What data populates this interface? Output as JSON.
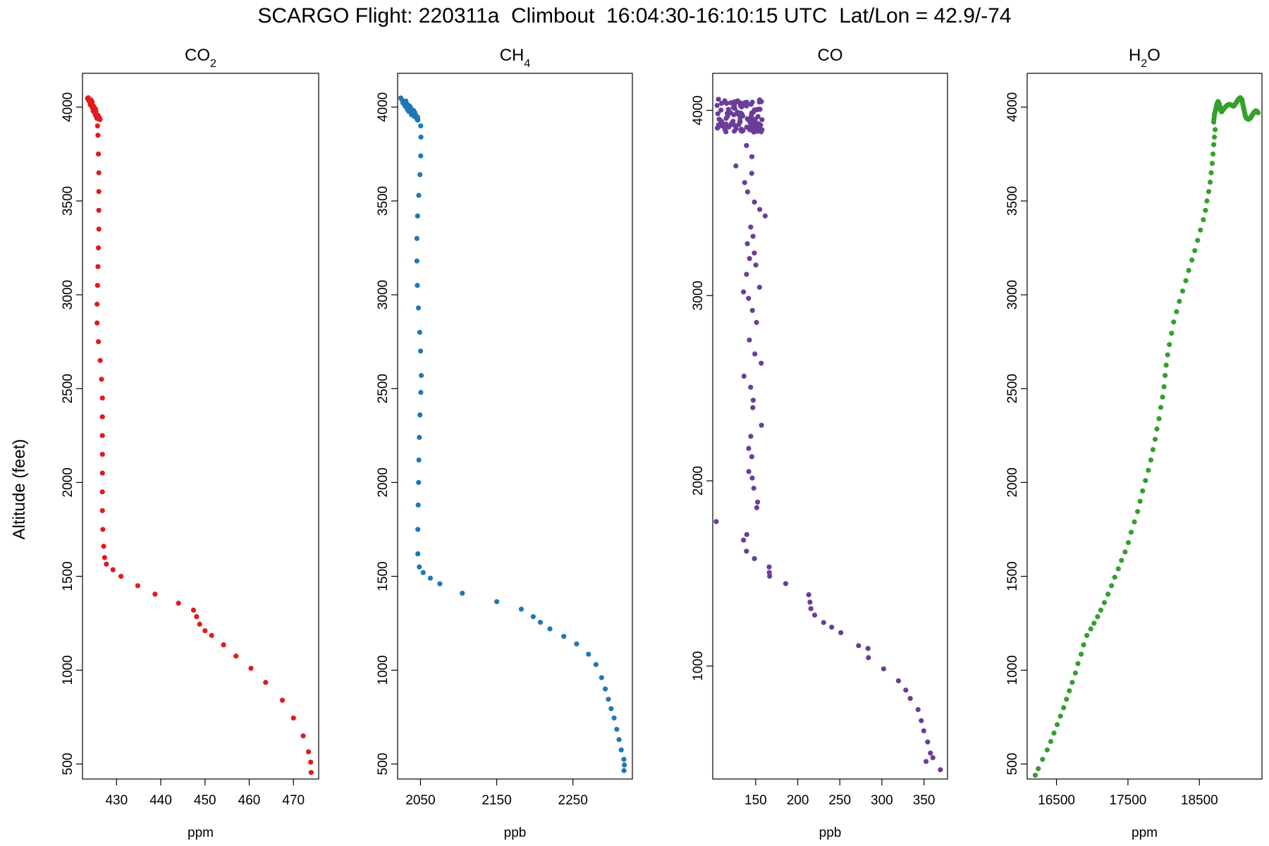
{
  "figure": {
    "title": "SCARGO Flight: 220311a  Climbout  16:04:30-16:10:15 UTC  Lat/Lon = 42.9/-74",
    "ylabel": "Altitude (feet)"
  },
  "chart_data": [
    {
      "type": "scatter",
      "title_main": "CO",
      "title_sub": "2",
      "color": "#e31a1c",
      "xlabel": "ppm",
      "ylabel": "Altitude (feet)",
      "xlim": [
        422.3,
        475.7
      ],
      "ylim": [
        420,
        4180
      ],
      "xticks": [
        430,
        440,
        450,
        460,
        470
      ],
      "yticks": [
        500,
        1000,
        1500,
        2000,
        2500,
        3000,
        3500,
        4000
      ],
      "profile": [
        [
          474.0,
          455
        ],
        [
          473.9,
          510
        ],
        [
          473.4,
          565
        ],
        [
          472.2,
          650
        ],
        [
          470.0,
          745
        ],
        [
          467.5,
          840
        ],
        [
          463.7,
          935
        ],
        [
          460.4,
          1010
        ],
        [
          457.0,
          1075
        ],
        [
          454.2,
          1135
        ],
        [
          451.5,
          1185
        ],
        [
          450.0,
          1210
        ],
        [
          448.8,
          1245
        ],
        [
          448.1,
          1285
        ],
        [
          447.4,
          1320
        ],
        [
          444.0,
          1357
        ],
        [
          438.7,
          1405
        ],
        [
          434.8,
          1450
        ],
        [
          431.0,
          1500
        ],
        [
          429.2,
          1535
        ],
        [
          427.7,
          1565
        ],
        [
          427.3,
          1600
        ],
        [
          427.1,
          1660
        ],
        [
          426.9,
          1750
        ],
        [
          426.8,
          1850
        ],
        [
          426.8,
          1950
        ],
        [
          426.8,
          2050
        ],
        [
          426.8,
          2150
        ],
        [
          426.8,
          2250
        ],
        [
          426.8,
          2350
        ],
        [
          426.8,
          2450
        ],
        [
          426.6,
          2550
        ],
        [
          426.3,
          2650
        ],
        [
          425.9,
          2750
        ],
        [
          425.6,
          2850
        ],
        [
          425.6,
          2950
        ],
        [
          425.7,
          3050
        ],
        [
          425.8,
          3150
        ],
        [
          425.9,
          3250
        ],
        [
          426.0,
          3350
        ],
        [
          426.0,
          3450
        ],
        [
          426.0,
          3550
        ],
        [
          426.0,
          3650
        ],
        [
          425.9,
          3750
        ],
        [
          425.8,
          3850
        ],
        [
          425.7,
          3900
        ]
      ],
      "cluster": {
        "x": [
          423.7,
          426.0
        ],
        "y": [
          3930,
          4050
        ],
        "count": 45
      }
    },
    {
      "type": "scatter",
      "title_main": "CH",
      "title_sub": "4",
      "color": "#1f78b4",
      "xlabel": "ppb",
      "ylabel": "Altitude (feet)",
      "xlim": [
        2020,
        2328
      ],
      "ylim": [
        420,
        4180
      ],
      "xticks": [
        2050,
        2150,
        2250
      ],
      "yticks": [
        500,
        1000,
        1500,
        2000,
        2500,
        3000,
        3500,
        4000
      ],
      "profile": [
        [
          2317.0,
          465
        ],
        [
          2317.5,
          495
        ],
        [
          2316.8,
          525
        ],
        [
          2313.4,
          575
        ],
        [
          2310.5,
          630
        ],
        [
          2307.5,
          685
        ],
        [
          2304.0,
          745
        ],
        [
          2300.1,
          795
        ],
        [
          2296.5,
          845
        ],
        [
          2292.5,
          900
        ],
        [
          2287.6,
          960
        ],
        [
          2280.2,
          1030
        ],
        [
          2270.4,
          1085
        ],
        [
          2254.8,
          1140
        ],
        [
          2238.0,
          1180
        ],
        [
          2219.8,
          1220
        ],
        [
          2207.3,
          1255
        ],
        [
          2197.9,
          1285
        ],
        [
          2182.3,
          1325
        ],
        [
          2150.1,
          1365
        ],
        [
          2104.9,
          1410
        ],
        [
          2075.4,
          1460
        ],
        [
          2063.0,
          1490
        ],
        [
          2053.5,
          1520
        ],
        [
          2048.5,
          1550
        ],
        [
          2046.5,
          1620
        ],
        [
          2046.5,
          1750
        ],
        [
          2047.0,
          1880
        ],
        [
          2047.5,
          2000
        ],
        [
          2047.9,
          2120
        ],
        [
          2048.5,
          2240
        ],
        [
          2049.3,
          2360
        ],
        [
          2050.4,
          2480
        ],
        [
          2051.1,
          2570
        ],
        [
          2050.1,
          2700
        ],
        [
          2049.0,
          2800
        ],
        [
          2047.3,
          2930
        ],
        [
          2045.9,
          3050
        ],
        [
          2045.3,
          3180
        ],
        [
          2045.3,
          3300
        ],
        [
          2046.2,
          3420
        ],
        [
          2047.7,
          3530
        ],
        [
          2049.3,
          3640
        ],
        [
          2050.3,
          3740
        ],
        [
          2050.6,
          3840
        ],
        [
          2050.3,
          3900
        ]
      ],
      "cluster": {
        "x": [
          2024.5,
          2046.5
        ],
        "y": [
          3930,
          4055
        ],
        "count": 45
      }
    },
    {
      "type": "scatter",
      "title_main": "CO",
      "title_sub": "",
      "color": "#6a3d9a",
      "xlabel": "ppb",
      "ylabel": "Altitude (feet)",
      "xlim": [
        99,
        378
      ],
      "ylim": [
        390,
        4200
      ],
      "xticks": [
        150,
        200,
        250,
        300,
        350
      ],
      "yticks": [
        1000,
        2000,
        3000,
        4000
      ],
      "profile": [
        [
          369.5,
          440
        ],
        [
          352.5,
          485
        ],
        [
          360.6,
          505
        ],
        [
          357.7,
          530
        ],
        [
          354.4,
          590
        ],
        [
          349.8,
          650
        ],
        [
          346.8,
          705
        ],
        [
          343.0,
          765
        ],
        [
          333.7,
          825
        ],
        [
          328.4,
          870
        ],
        [
          319.7,
          920
        ],
        [
          302.1,
          985
        ],
        [
          284.0,
          1045
        ],
        [
          283.5,
          1095
        ],
        [
          272.3,
          1110
        ],
        [
          251.2,
          1180
        ],
        [
          240.3,
          1210
        ],
        [
          230.8,
          1235
        ],
        [
          220.1,
          1275
        ],
        [
          215.6,
          1310
        ],
        [
          214.5,
          1345
        ],
        [
          213.1,
          1385
        ],
        [
          185.7,
          1445
        ],
        [
          166.6,
          1485
        ],
        [
          166.2,
          1505
        ],
        [
          166.0,
          1535
        ],
        [
          148.5,
          1580
        ],
        [
          139.1,
          1620
        ],
        [
          135.6,
          1680
        ],
        [
          139.4,
          1710
        ],
        [
          103.1,
          1780
        ],
        [
          151.3,
          1855
        ],
        [
          152.3,
          1885
        ],
        [
          147.8,
          1960
        ],
        [
          145.9,
          2015
        ],
        [
          141.8,
          2050
        ],
        [
          145.4,
          2130
        ],
        [
          141.7,
          2175
        ],
        [
          144.2,
          2240
        ],
        [
          156.9,
          2300
        ],
        [
          146.6,
          2395
        ],
        [
          147.1,
          2435
        ],
        [
          144.0,
          2505
        ],
        [
          136.1,
          2565
        ],
        [
          156.6,
          2635
        ],
        [
          149.0,
          2685
        ],
        [
          142.5,
          2760
        ],
        [
          151.0,
          2855
        ],
        [
          146.1,
          2920
        ],
        [
          141.5,
          2985
        ],
        [
          135.5,
          3020
        ],
        [
          154.6,
          3045
        ],
        [
          139.1,
          3115
        ],
        [
          150.2,
          3165
        ],
        [
          142.7,
          3200
        ],
        [
          148.4,
          3230
        ],
        [
          140.1,
          3280
        ],
        [
          146.9,
          3320
        ],
        [
          144.1,
          3370
        ],
        [
          161.3,
          3430
        ],
        [
          154.8,
          3465
        ],
        [
          148.5,
          3505
        ],
        [
          140.4,
          3560
        ],
        [
          136.9,
          3610
        ],
        [
          145.3,
          3660
        ],
        [
          126.5,
          3700
        ],
        [
          145.5,
          3750
        ],
        [
          139.1,
          3810
        ]
      ],
      "cluster": {
        "x": [
          104,
          158
        ],
        "y": [
          3880,
          4060
        ],
        "count": 110
      }
    },
    {
      "type": "scatter",
      "title_main": "H",
      "title_sub": "2",
      "title_tail": "O",
      "color": "#33a02c",
      "xlabel": "ppm",
      "ylabel": "Altitude (feet)",
      "xlim": [
        16090,
        19375
      ],
      "ylim": [
        420,
        4180
      ],
      "xticks": [
        16500,
        17500,
        18500
      ],
      "yticks": [
        500,
        1000,
        1500,
        2000,
        2500,
        3000,
        3500,
        4000
      ],
      "profile": [
        [
          16203,
          440
        ],
        [
          16245,
          475
        ],
        [
          16305,
          525
        ],
        [
          16370,
          575
        ],
        [
          16420,
          620
        ],
        [
          16465,
          665
        ],
        [
          16510,
          710
        ],
        [
          16555,
          755
        ],
        [
          16600,
          800
        ],
        [
          16640,
          845
        ],
        [
          16680,
          890
        ],
        [
          16720,
          935
        ],
        [
          16765,
          985
        ],
        [
          16800,
          1035
        ],
        [
          16845,
          1085
        ],
        [
          16880,
          1135
        ],
        [
          16925,
          1185
        ],
        [
          16980,
          1220
        ],
        [
          17025,
          1250
        ],
        [
          17075,
          1285
        ],
        [
          17120,
          1320
        ],
        [
          17170,
          1360
        ],
        [
          17220,
          1405
        ],
        [
          17270,
          1450
        ],
        [
          17315,
          1495
        ],
        [
          17365,
          1540
        ],
        [
          17410,
          1585
        ],
        [
          17460,
          1630
        ],
        [
          17505,
          1680
        ],
        [
          17545,
          1735
        ],
        [
          17590,
          1790
        ],
        [
          17635,
          1845
        ],
        [
          17670,
          1900
        ],
        [
          17705,
          1955
        ],
        [
          17745,
          2010
        ],
        [
          17785,
          2065
        ],
        [
          17820,
          2120
        ],
        [
          17850,
          2175
        ],
        [
          17880,
          2230
        ],
        [
          17905,
          2285
        ],
        [
          17935,
          2340
        ],
        [
          17960,
          2400
        ],
        [
          17985,
          2455
        ],
        [
          18005,
          2510
        ],
        [
          18020,
          2570
        ],
        [
          18035,
          2625
        ],
        [
          18055,
          2680
        ],
        [
          18080,
          2735
        ],
        [
          18110,
          2795
        ],
        [
          18140,
          2855
        ],
        [
          18180,
          2910
        ],
        [
          18220,
          2965
        ],
        [
          18265,
          3020
        ],
        [
          18310,
          3075
        ],
        [
          18350,
          3130
        ],
        [
          18395,
          3185
        ],
        [
          18435,
          3235
        ],
        [
          18475,
          3290
        ],
        [
          18515,
          3345
        ],
        [
          18555,
          3400
        ],
        [
          18585,
          3450
        ],
        [
          18605,
          3500
        ],
        [
          18630,
          3550
        ],
        [
          18650,
          3600
        ],
        [
          18665,
          3650
        ],
        [
          18680,
          3700
        ],
        [
          18690,
          3750
        ],
        [
          18700,
          3800
        ],
        [
          18710,
          3840
        ],
        [
          18720,
          3880
        ]
      ],
      "cluster_path": [
        [
          18700,
          3920
        ],
        [
          18710,
          3960
        ],
        [
          18730,
          3990
        ],
        [
          18740,
          4010
        ],
        [
          18760,
          4030
        ],
        [
          18780,
          4015
        ],
        [
          18790,
          3990
        ],
        [
          18810,
          3975
        ],
        [
          18830,
          3985
        ],
        [
          18860,
          4000
        ],
        [
          18890,
          4010
        ],
        [
          18920,
          4015
        ],
        [
          18950,
          4010
        ],
        [
          18980,
          4005
        ],
        [
          19010,
          4020
        ],
        [
          19040,
          4040
        ],
        [
          19070,
          4050
        ],
        [
          19095,
          4040
        ],
        [
          19110,
          4010
        ],
        [
          19130,
          3975
        ],
        [
          19145,
          3950
        ],
        [
          19160,
          3940
        ],
        [
          19185,
          3935
        ],
        [
          19210,
          3940
        ],
        [
          19235,
          3955
        ],
        [
          19260,
          3970
        ],
        [
          19285,
          3980
        ],
        [
          19305,
          3978
        ],
        [
          19320,
          3970
        ]
      ]
    }
  ]
}
